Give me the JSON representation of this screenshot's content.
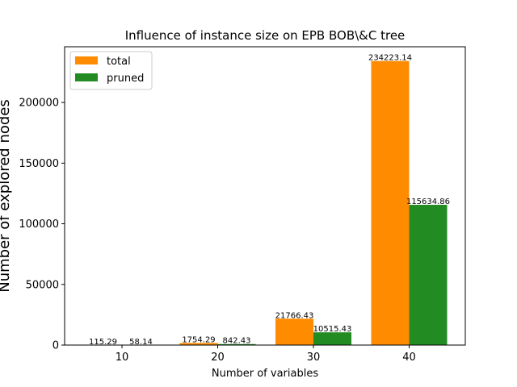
{
  "chart_data": {
    "type": "bar",
    "title": "Influence of instance size on EPB BOB\\&C tree",
    "xlabel": "Number of variables",
    "ylabel": "Number of explored nodes",
    "categories": [
      "10",
      "20",
      "30",
      "40"
    ],
    "series": [
      {
        "name": "total",
        "color": "#ff8c00",
        "values": [
          115.29,
          1754.29,
          21766.43,
          234223.14
        ],
        "labels": [
          "115.29",
          "1754.29",
          "21766.43",
          "234223.14"
        ]
      },
      {
        "name": "pruned",
        "color": "#228b22",
        "values": [
          58.14,
          842.43,
          10515.43,
          115634.86
        ],
        "labels": [
          "58.14",
          "842.43",
          "10515.43",
          "115634.86"
        ]
      }
    ],
    "ylim": [
      0,
      245935
    ],
    "yticks": [
      0,
      50000,
      100000,
      150000,
      200000
    ],
    "ytick_labels": [
      "0",
      "50000",
      "100000",
      "150000",
      "200000"
    ],
    "grid": false,
    "legend_position": "top-left"
  }
}
